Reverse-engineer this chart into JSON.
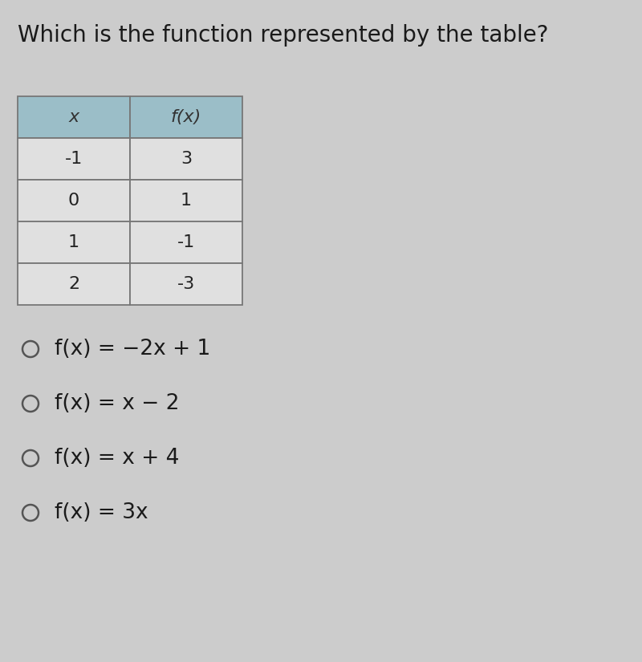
{
  "title": "Which is the function represented by the table?",
  "title_fontsize": 20,
  "title_color": "#1a1a1a",
  "background_color": "#cccccc",
  "table_header_bg": "#9bbec8",
  "table_cell_bg": "#e0e0e0",
  "table_border_color": "#777777",
  "col_headers": [
    "x",
    "f(x)"
  ],
  "rows": [
    [
      "-1",
      "3"
    ],
    [
      "0",
      "1"
    ],
    [
      "1",
      "-1"
    ],
    [
      "2",
      "-3"
    ]
  ],
  "options": [
    "f(x) = −2x + 1",
    "f(x) = x − 2",
    "f(x) = x + 4",
    "f(x) = 3x"
  ],
  "option_fontsize": 19,
  "option_color": "#1a1a1a",
  "circle_color": "#555555",
  "header_fontsize": 16,
  "cell_fontsize": 16
}
